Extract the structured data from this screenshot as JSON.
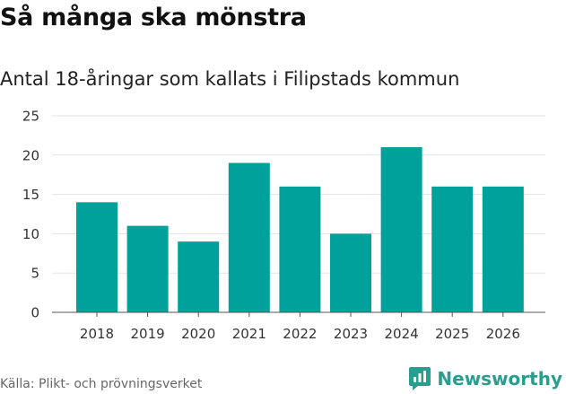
{
  "title": "Så många ska mönstra",
  "chart_data": {
    "type": "bar",
    "title": "Antal 18-åringar som kallats i Filipstads kommun",
    "categories": [
      "2018",
      "2019",
      "2020",
      "2021",
      "2022",
      "2023",
      "2024",
      "2025",
      "2026"
    ],
    "values": [
      14,
      11,
      9,
      19,
      16,
      10,
      21,
      16,
      16
    ],
    "xlabel": "",
    "ylabel": "",
    "ylim": [
      0,
      25
    ],
    "yticks": [
      0,
      5,
      10,
      15,
      20,
      25
    ],
    "grid": true,
    "bar_color": "#00a19a"
  },
  "footer": {
    "source": "Källa: Plikt- och prövningsverket",
    "brand": "Newsworthy",
    "brand_color": "#2a9d8f"
  }
}
